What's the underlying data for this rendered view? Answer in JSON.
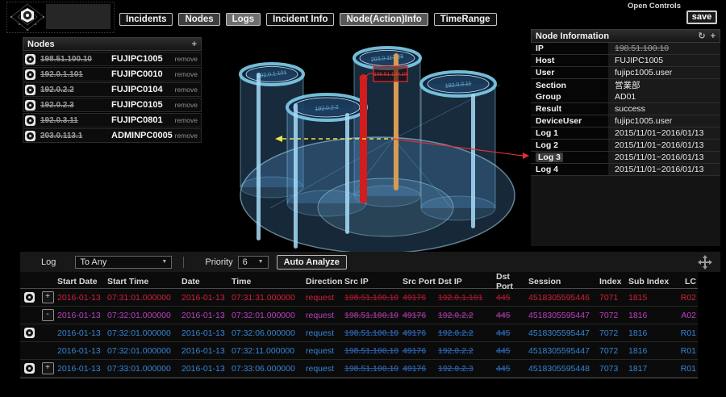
{
  "header": {
    "open_controls": "Open Controls",
    "save_label": "save",
    "tabs": [
      {
        "label": "Incidents",
        "tone": "dark"
      },
      {
        "label": "Nodes",
        "tone": "mid"
      },
      {
        "label": "Logs",
        "tone": "light"
      },
      {
        "label": "Incident Info",
        "tone": "dark"
      },
      {
        "label": "Node(Action)Info",
        "tone": "mid2"
      },
      {
        "label": "TimeRange",
        "tone": "dark"
      }
    ]
  },
  "icons": {
    "add": "+",
    "refresh": "↻",
    "chevron": "▼"
  },
  "nodes_panel": {
    "title": "Nodes",
    "remove_label": "remove",
    "rows": [
      {
        "ip": "198.51.100.10",
        "host": "FUJIPC1005"
      },
      {
        "ip": "192.0.1.101",
        "host": "FUJIPC0010"
      },
      {
        "ip": "192.0.2.2",
        "host": "FUJIPC0104"
      },
      {
        "ip": "192.0.2.3",
        "host": "FUJIPC0105"
      },
      {
        "ip": "192.0.3.11",
        "host": "FUJIPC0801"
      },
      {
        "ip": "203.0.113.1",
        "host": "ADMINPC0005"
      }
    ]
  },
  "node_info": {
    "title": "Node Information",
    "rows": [
      {
        "label": "IP",
        "value": "198.51.100.10",
        "struck": true
      },
      {
        "label": "Host",
        "value": "FUJIPC1005"
      },
      {
        "label": "User",
        "value": "fujipc1005.user"
      },
      {
        "label": "Section",
        "value": "営業部"
      },
      {
        "label": "Group",
        "value": "AD01"
      },
      {
        "label": "Result",
        "value": "success"
      },
      {
        "label": "DeviceUser",
        "value": "fujipc1005.user"
      },
      {
        "label": "Log 1",
        "value": "2015/11/01~2016/01/13"
      },
      {
        "label": "Log 2",
        "value": "2015/11/01~2016/01/13"
      },
      {
        "label": "Log 3",
        "value": "2015/11/01~2016/01/13",
        "highlight": true
      },
      {
        "label": "Log 4",
        "value": "2015/11/01~2016/01/13"
      }
    ]
  },
  "scene": {
    "labels": [
      "192.0.1.101",
      "192.0.2.2",
      "203.0.113.23",
      "192.0.3.11"
    ],
    "alert_ip": "198.51.100.10",
    "palette": {
      "alert_bar": "#d01d1d",
      "action_bar": "#d69c55",
      "flow_dashed": "#e8e84a",
      "flow_red": "#e23030",
      "cylinder_rim": "#7ecbe8"
    }
  },
  "log_panel": {
    "log_label": "Log",
    "log_filter": "To Any",
    "priority_label": "Priority",
    "priority_value": "6",
    "auto_analyze": "Auto Analyze",
    "columns": [
      "",
      "",
      "Start Date",
      "Start Time",
      "Date",
      "Time",
      "Direction",
      "Src IP",
      "Src Port",
      "Dst IP",
      "Dst Port",
      "Session",
      "Index",
      "Sub Index",
      "LC"
    ],
    "rows": [
      {
        "color": "red",
        "gear": true,
        "expander": "+",
        "start_date": "2016-01-13",
        "start_time": "07:31:01.000000",
        "date": "2016-01-13",
        "time": "07:31:31.000000",
        "direction": "request",
        "src_ip": "198.51.100.10",
        "src_port": "49176",
        "dst_ip": "192.0.1.101",
        "dst_port": "445",
        "session": "4518305595446",
        "index": "7071",
        "sub_index": "1815",
        "lc": "R02"
      },
      {
        "color": "magenta",
        "gear": false,
        "expander": "-",
        "start_date": "2016-01-13",
        "start_time": "07:32:01.000000",
        "date": "2016-01-13",
        "time": "07:32:01.000000",
        "direction": "request",
        "src_ip": "198.51.100.10",
        "src_port": "49176",
        "dst_ip": "192.0.2.2",
        "dst_port": "445",
        "session": "4518305595447",
        "index": "7072",
        "sub_index": "1816",
        "lc": "A02"
      },
      {
        "color": "blue",
        "gear": true,
        "expander": null,
        "start_date": "2016-01-13",
        "start_time": "07:32:01.000000",
        "date": "2016-01-13",
        "time": "07:32:06.000000",
        "direction": "request",
        "src_ip": "198.51.100.10",
        "src_port": "49176",
        "dst_ip": "192.0.2.2",
        "dst_port": "445",
        "session": "4518305595447",
        "index": "7072",
        "sub_index": "1816",
        "lc": "R01"
      },
      {
        "color": "blue",
        "gear": false,
        "expander": null,
        "start_date": "2016-01-13",
        "start_time": "07:32:01.000000",
        "date": "2016-01-13",
        "time": "07:32:11.000000",
        "direction": "request",
        "src_ip": "198.51.100.10",
        "src_port": "49176",
        "dst_ip": "192.0.2.2",
        "dst_port": "445",
        "session": "4518305595447",
        "index": "7072",
        "sub_index": "1816",
        "lc": "R01"
      },
      {
        "color": "blue",
        "gear": true,
        "expander": "+",
        "start_date": "2016-01-13",
        "start_time": "07:33:01.000000",
        "date": "2016-01-13",
        "time": "07:33:06.000000",
        "direction": "request",
        "src_ip": "198.51.100.10",
        "src_port": "49176",
        "dst_ip": "192.0.2.3",
        "dst_port": "445",
        "session": "4518305595448",
        "index": "7073",
        "sub_index": "1817",
        "lc": "R01"
      }
    ]
  }
}
